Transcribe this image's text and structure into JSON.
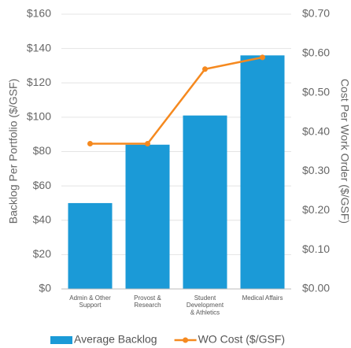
{
  "chart_data": {
    "type": "bar+line",
    "categories": [
      "Admin & Other\nSupport",
      "Provost &\nResearch",
      "Student\nDevelopment\n& Athletics",
      "Medical Affairs"
    ],
    "series": [
      {
        "name": "Average Backlog",
        "type": "bar",
        "color": "#1b9ad7",
        "values": [
          50,
          84,
          101,
          136
        ]
      },
      {
        "name": "WO Cost ($/GSF)",
        "type": "line",
        "color": "#f5891f",
        "axis": "y2",
        "values": [
          0.37,
          0.37,
          0.56,
          0.59
        ]
      }
    ],
    "ylabel": "Backlog Per Portfolio ($/GSF)",
    "y2label": "Cost Per Work Order ($/GSF)",
    "ylim": [
      0,
      160
    ],
    "yticks": [
      {
        "value": 0,
        "label": "$0"
      },
      {
        "value": 20,
        "label": "$20"
      },
      {
        "value": 40,
        "label": "$40"
      },
      {
        "value": 60,
        "label": "$60"
      },
      {
        "value": 80,
        "label": "$80"
      },
      {
        "value": 100,
        "label": "$100"
      },
      {
        "value": 120,
        "label": "$120"
      },
      {
        "value": 140,
        "label": "$140"
      },
      {
        "value": 160,
        "label": "$160"
      }
    ],
    "y2lim": [
      0,
      0.7
    ],
    "y2ticks": [
      {
        "value": 0,
        "label": "$0.00"
      },
      {
        "value": 0.1,
        "label": "$0.10"
      },
      {
        "value": 0.2,
        "label": "$0.20"
      },
      {
        "value": 0.3,
        "label": "$0.30"
      },
      {
        "value": 0.4,
        "label": "$0.40"
      },
      {
        "value": 0.5,
        "label": "$0.50"
      },
      {
        "value": 0.6,
        "label": "$0.60"
      },
      {
        "value": 0.7,
        "label": "$0.70"
      }
    ],
    "grid": true,
    "legend": "bottom"
  }
}
